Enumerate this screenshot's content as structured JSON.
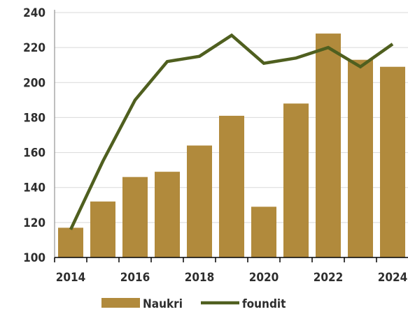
{
  "chart_data": {
    "type": "bar",
    "categories": [
      "2014",
      "2015",
      "2016",
      "2017",
      "2018",
      "2019",
      "2020",
      "2021",
      "2022",
      "2023",
      "2024"
    ],
    "series": [
      {
        "name": "Naukri",
        "kind": "bar",
        "color": "#b18a3c",
        "values": [
          117,
          132,
          146,
          149,
          164,
          181,
          129,
          188,
          228,
          213,
          209
        ]
      },
      {
        "name": "foundit",
        "kind": "line",
        "color": "#4f5f1f",
        "values": [
          116,
          155,
          190,
          212,
          215,
          227,
          211,
          214,
          220,
          209,
          222
        ]
      }
    ],
    "ylim": [
      100,
      240
    ],
    "yticks": [
      100,
      120,
      140,
      160,
      180,
      200,
      220,
      240
    ],
    "xticks": [
      "2014",
      "2016",
      "2018",
      "2020",
      "2022",
      "2024"
    ],
    "grid": true,
    "legend": "bottom"
  }
}
